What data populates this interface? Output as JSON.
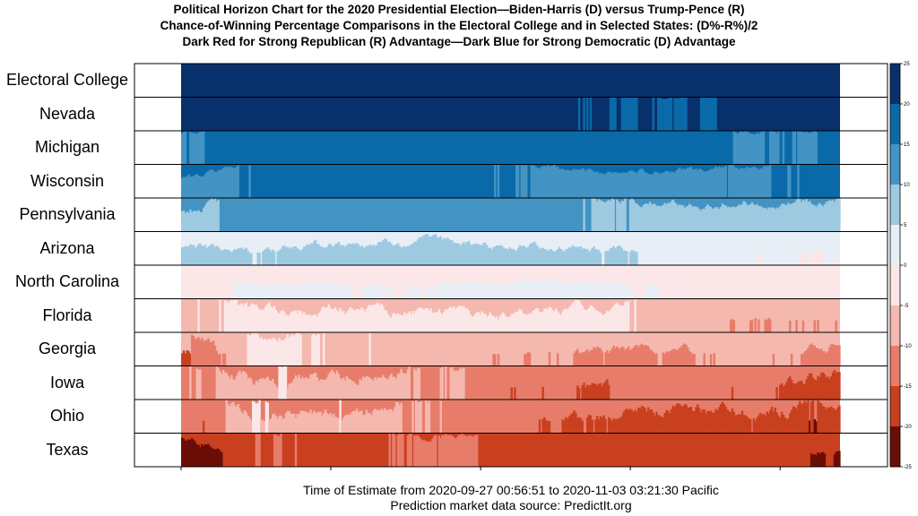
{
  "title_lines": [
    "Political Horizon Chart for the 2020 Presidential Election—Biden-Harris (D) versus Trump-Pence (R)",
    "Chance-of-Winning Percentage Comparisons in the Electoral College and in Selected States: (D%-R%)/2",
    "Dark Red for Strong Republican (R) Advantage—Dark Blue for Strong Democratic (D) Advantage"
  ],
  "caption_lines": [
    "Time of Estimate from 2020-09-27 00:56:51 to 2020-11-03 03:21:30 Pacific",
    "Prediction market data source: PredictIt.org"
  ],
  "colors": {
    "d5": "#08306b",
    "d4": "#0a6aa9",
    "d3": "#4393c3",
    "d2": "#9ecae1",
    "d1": "#e8eef6",
    "r1": "#fbe7e7",
    "r2": "#f4b8ae",
    "r3": "#e87c6a",
    "r4": "#c9401f",
    "r5": "#6b0d06"
  },
  "chart_data": {
    "type": "horizon",
    "x_range": [
      "2020-09-27 00:56:51",
      "2020-11-03 03:21:30"
    ],
    "value_range": [
      -25,
      25
    ],
    "band_step": 5,
    "colorbar_ticks": [
      25,
      20,
      15,
      10,
      5,
      0,
      -5,
      -10,
      -15,
      -20,
      -25
    ],
    "series": [
      {
        "name": "Electoral College",
        "base": 23,
        "amp": 1,
        "knots": [
          0,
          0,
          0,
          0,
          0,
          0,
          0,
          0.5,
          1
        ]
      },
      {
        "name": "Nevada",
        "base": 20.5,
        "amp": 1.2,
        "knots": [
          0.3,
          0.3,
          0,
          0,
          0,
          -0.3,
          -0.5,
          -0.3,
          0
        ]
      },
      {
        "name": "Michigan",
        "base": 17,
        "amp": 2.5,
        "knots": [
          -1,
          0.5,
          0.8,
          0.7,
          0.3,
          -0.6,
          -0.5,
          -0.8,
          -0.7
        ]
      },
      {
        "name": "Wisconsin",
        "base": 15,
        "amp": 3,
        "knots": [
          -1,
          0.3,
          0.4,
          0.2,
          0.1,
          -0.5,
          -0.5,
          -0.1,
          0.2
        ]
      },
      {
        "name": "Pennsylvania",
        "base": 11,
        "amp": 4,
        "knots": [
          -1,
          0.4,
          0.6,
          0.3,
          0.1,
          -0.2,
          -0.6,
          -0.5,
          -0.4
        ]
      },
      {
        "name": "Arizona",
        "base": 4,
        "amp": 4,
        "knots": [
          0.6,
          0.4,
          0.8,
          0.9,
          0.7,
          0.4,
          0,
          -0.8,
          -1
        ]
      },
      {
        "name": "North Carolina",
        "base": -0.5,
        "amp": 3,
        "knots": [
          -0.3,
          0.3,
          0.4,
          0.3,
          0.5,
          0.5,
          -0.2,
          -0.7,
          -0.9
        ]
      },
      {
        "name": "Florida",
        "base": -5,
        "amp": 5,
        "knots": [
          -0.2,
          0.6,
          0.5,
          0.6,
          0.8,
          0.5,
          -0.6,
          -1,
          -1
        ]
      },
      {
        "name": "Georgia",
        "base": -9,
        "amp": 5,
        "knots": [
          -1.3,
          1,
          0.6,
          0.4,
          -0.1,
          -0.3,
          -0.4,
          0.3,
          -0.6
        ]
      },
      {
        "name": "Iowa",
        "base": -10,
        "amp": 6,
        "knots": [
          -0.2,
          0.6,
          0.4,
          0,
          -0.6,
          -0.8,
          -0.6,
          -0.7,
          -1.4
        ]
      },
      {
        "name": "Ohio",
        "base": -12,
        "amp": 6,
        "knots": [
          -0.4,
          0.9,
          0.9,
          0.2,
          -0.3,
          -0.6,
          -1,
          -0.8,
          -1.3
        ]
      },
      {
        "name": "Texas",
        "base": -18,
        "amp": 4,
        "knots": [
          -1.6,
          0.6,
          0.2,
          0.9,
          0.3,
          0.3,
          0.1,
          0.2,
          -0.6
        ]
      }
    ]
  }
}
